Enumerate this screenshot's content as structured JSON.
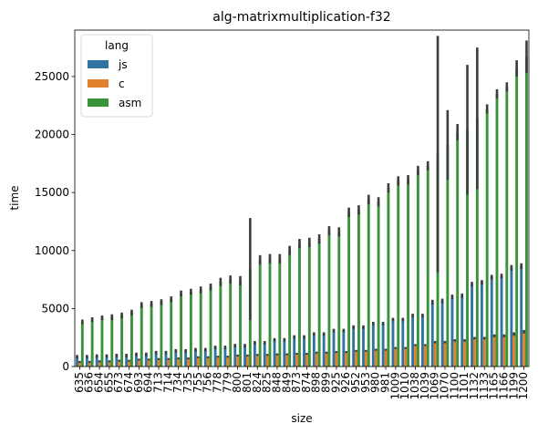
{
  "chart_data": {
    "type": "bar",
    "title": "alg-matrixmultiplication-f32",
    "xlabel": "size",
    "ylabel": "time",
    "ylim": [
      0,
      29000
    ],
    "yticks": [
      0,
      5000,
      10000,
      15000,
      20000,
      25000
    ],
    "grid": false,
    "legend": {
      "title": "lang",
      "placement": "top-left"
    },
    "categories": [
      "635",
      "636",
      "654",
      "655",
      "673",
      "674",
      "693",
      "694",
      "713",
      "714",
      "734",
      "735",
      "755",
      "756",
      "778",
      "779",
      "800",
      "801",
      "824",
      "825",
      "848",
      "849",
      "873",
      "874",
      "898",
      "899",
      "925",
      "926",
      "952",
      "953",
      "980",
      "981",
      "1009",
      "1010",
      "1038",
      "1039",
      "1069",
      "1070",
      "1100",
      "1101",
      "1132",
      "1133",
      "1165",
      "1166",
      "1199",
      "1200"
    ],
    "series": [
      {
        "name": "js",
        "color": "#3274a1",
        "values": [
          850,
          850,
          900,
          900,
          950,
          950,
          1050,
          1050,
          1200,
          1200,
          1350,
          1350,
          1450,
          1450,
          1650,
          1650,
          1800,
          1800,
          2050,
          2050,
          2300,
          2300,
          2550,
          2550,
          2800,
          2800,
          3100,
          3100,
          3400,
          3400,
          3700,
          3700,
          4050,
          4050,
          4400,
          4400,
          5550,
          5650,
          6000,
          6100,
          7100,
          7250,
          7700,
          7800,
          8500,
          8650
        ],
        "err": [
          150,
          150,
          150,
          150,
          150,
          150,
          150,
          150,
          150,
          150,
          150,
          150,
          150,
          150,
          150,
          150,
          150,
          150,
          150,
          150,
          150,
          150,
          150,
          150,
          150,
          150,
          150,
          150,
          150,
          150,
          150,
          150,
          150,
          150,
          150,
          150,
          200,
          200,
          200,
          200,
          200,
          200,
          200,
          200,
          250,
          250
        ]
      },
      {
        "name": "c",
        "color": "#e1812c",
        "values": [
          400,
          400,
          450,
          450,
          500,
          500,
          600,
          600,
          650,
          650,
          700,
          700,
          800,
          800,
          850,
          850,
          950,
          950,
          1000,
          1000,
          1050,
          1050,
          1100,
          1100,
          1200,
          1200,
          1250,
          1250,
          1350,
          1350,
          1450,
          1450,
          1600,
          1600,
          1850,
          1850,
          2100,
          2100,
          2250,
          2250,
          2450,
          2450,
          2650,
          2650,
          2800,
          3000
        ],
        "err": [
          80,
          80,
          80,
          80,
          80,
          80,
          80,
          80,
          80,
          80,
          80,
          80,
          80,
          80,
          80,
          80,
          80,
          80,
          80,
          80,
          80,
          80,
          80,
          80,
          80,
          80,
          80,
          80,
          80,
          80,
          80,
          80,
          80,
          80,
          80,
          80,
          100,
          100,
          100,
          100,
          100,
          100,
          120,
          120,
          150,
          150
        ]
      },
      {
        "name": "asm",
        "color": "#3a923a",
        "values": [
          3850,
          4050,
          4200,
          4250,
          4400,
          4650,
          5300,
          5400,
          5550,
          5800,
          6300,
          6450,
          6600,
          6850,
          7300,
          7500,
          7400,
          8400,
          9200,
          9300,
          9300,
          10000,
          10600,
          10700,
          11000,
          11700,
          11600,
          13300,
          13500,
          14400,
          14200,
          15400,
          16000,
          16100,
          16900,
          17300,
          18300,
          19100,
          20200,
          20400,
          21400,
          22200,
          23500,
          24100,
          25700,
          26700
        ],
        "err": [
          200,
          200,
          200,
          250,
          250,
          250,
          250,
          250,
          250,
          250,
          250,
          250,
          300,
          300,
          350,
          350,
          400,
          4400,
          400,
          400,
          400,
          400,
          400,
          400,
          400,
          400,
          400,
          400,
          400,
          400,
          400,
          400,
          400,
          400,
          400,
          400,
          10200,
          3000,
          700,
          5600,
          6100,
          400,
          400,
          400,
          700,
          1400
        ]
      }
    ]
  }
}
